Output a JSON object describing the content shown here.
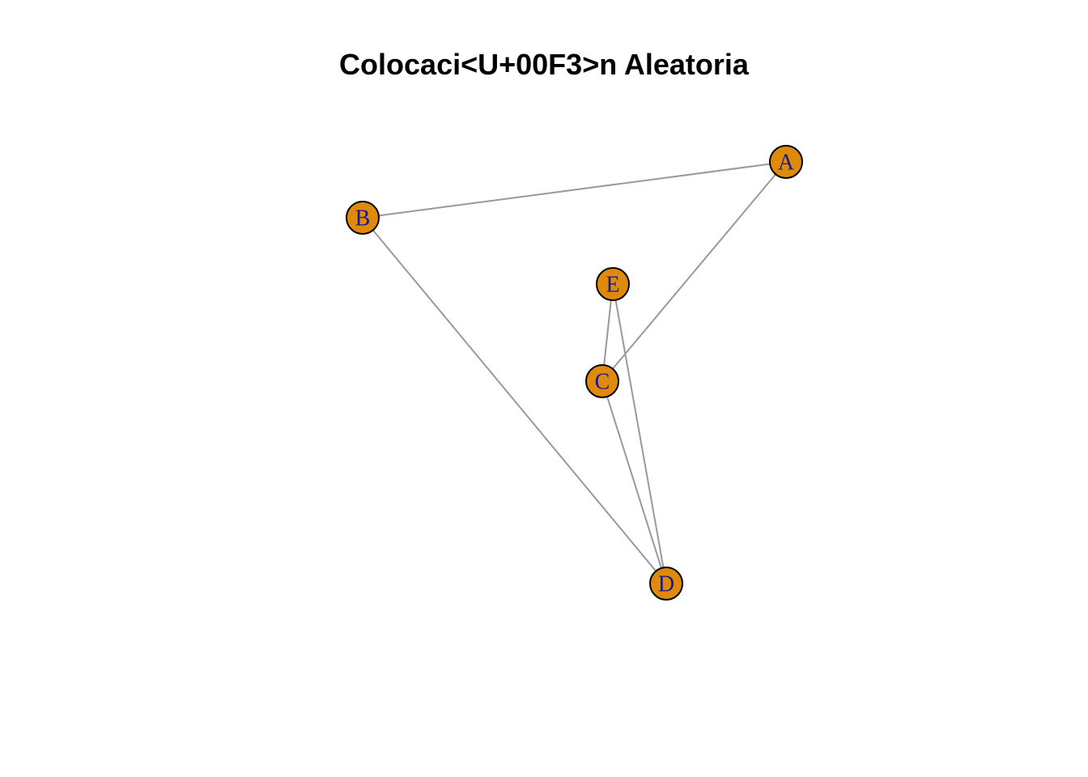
{
  "title": "Colocaci<U+00F3>n Aleatoria",
  "graph": {
    "nodes": [
      {
        "id": "A",
        "label": "A"
      },
      {
        "id": "B",
        "label": "B"
      },
      {
        "id": "C",
        "label": "C"
      },
      {
        "id": "D",
        "label": "D"
      },
      {
        "id": "E",
        "label": "E"
      }
    ],
    "edges": [
      {
        "source": "A",
        "target": "B"
      },
      {
        "source": "A",
        "target": "C"
      },
      {
        "source": "B",
        "target": "D"
      },
      {
        "source": "C",
        "target": "D"
      },
      {
        "source": "C",
        "target": "E"
      },
      {
        "source": "D",
        "target": "E"
      }
    ]
  },
  "colors": {
    "node_fill": "#E08A0B",
    "node_label": "#1A1A8A",
    "edge": "#999999"
  }
}
